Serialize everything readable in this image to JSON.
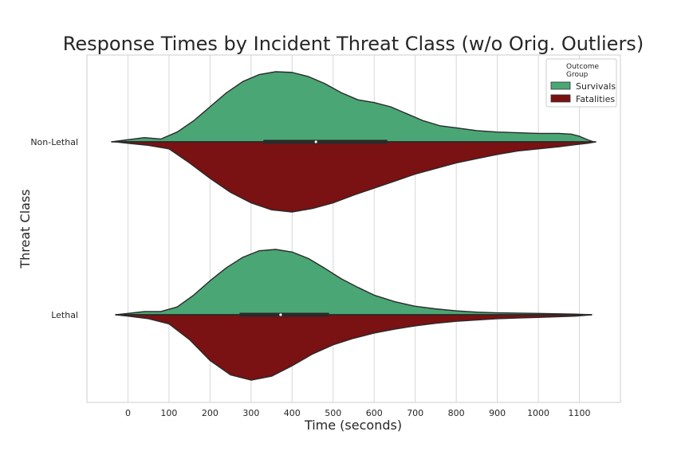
{
  "chart_data": {
    "type": "violin",
    "title": "Response Times by Incident Threat Class (w/o Orig. Outliers)",
    "xlabel": "Time (seconds)",
    "ylabel": "Threat Class",
    "xlim": [
      -100,
      1200
    ],
    "xticks": [
      0,
      100,
      200,
      300,
      400,
      500,
      600,
      700,
      800,
      900,
      1000,
      1100
    ],
    "xtick_labels": [
      "0",
      "100",
      "200",
      "300",
      "400",
      "500",
      "600",
      "700",
      "800",
      "900",
      "1000",
      "1100"
    ],
    "categories": [
      "Non-Lethal",
      "Lethal"
    ],
    "grid": "vertical",
    "split": true,
    "legend": {
      "title": "Outcome Group",
      "title_lines": [
        "Outcome",
        "Group"
      ],
      "placement": "top-right",
      "entries": [
        "Survivals",
        "Fatalities"
      ]
    },
    "series": [
      {
        "name": "Survivals",
        "color": "#4aa674",
        "side": "upper",
        "density": [
          {
            "category": "Non-Lethal",
            "x": [
              -40,
              0,
              40,
              80,
              120,
              160,
              200,
              240,
              280,
              320,
              360,
              400,
              440,
              480,
              520,
              560,
              600,
              640,
              680,
              720,
              760,
              800,
              850,
              900,
              950,
              1000,
              1050,
              1080,
              1100,
              1120,
              1135
            ],
            "y": [
              0,
              0.03,
              0.06,
              0.04,
              0.14,
              0.3,
              0.5,
              0.7,
              0.86,
              0.96,
              1.0,
              0.99,
              0.93,
              0.83,
              0.7,
              0.6,
              0.56,
              0.5,
              0.4,
              0.3,
              0.23,
              0.2,
              0.16,
              0.14,
              0.13,
              0.12,
              0.12,
              0.11,
              0.08,
              0.03,
              0
            ]
          },
          {
            "category": "Lethal",
            "x": [
              -30,
              0,
              40,
              80,
              120,
              160,
              200,
              240,
              280,
              320,
              360,
              400,
              440,
              480,
              520,
              560,
              600,
              650,
              700,
              750,
              800,
              850,
              900,
              950,
              1000,
              1050,
              1090,
              1130
            ],
            "y": [
              0,
              0.02,
              0.05,
              0.05,
              0.12,
              0.3,
              0.52,
              0.72,
              0.88,
              0.98,
              1.0,
              0.96,
              0.86,
              0.71,
              0.55,
              0.42,
              0.3,
              0.2,
              0.13,
              0.09,
              0.06,
              0.04,
              0.03,
              0.025,
              0.02,
              0.015,
              0.01,
              0
            ]
          }
        ]
      },
      {
        "name": "Fatalities",
        "color": "#7a1112",
        "side": "lower",
        "density": [
          {
            "category": "Non-Lethal",
            "x": [
              -30,
              0,
              50,
              100,
              150,
              200,
              250,
              300,
              350,
              400,
              450,
              500,
              550,
              600,
              650,
              700,
              750,
              800,
              850,
              900,
              950,
              1000,
              1050,
              1090,
              1120,
              1140
            ],
            "y": [
              0,
              0.02,
              0.05,
              0.1,
              0.3,
              0.52,
              0.72,
              0.87,
              0.97,
              1.0,
              0.95,
              0.87,
              0.76,
              0.66,
              0.56,
              0.46,
              0.38,
              0.3,
              0.24,
              0.18,
              0.13,
              0.1,
              0.07,
              0.04,
              0.02,
              0
            ]
          },
          {
            "category": "Lethal",
            "x": [
              -30,
              0,
              50,
              100,
              150,
              200,
              250,
              300,
              350,
              400,
              450,
              500,
              550,
              600,
              650,
              700,
              750,
              800,
              850,
              900,
              950,
              1000,
              1050,
              1090,
              1130
            ],
            "y": [
              0,
              0.02,
              0.06,
              0.14,
              0.38,
              0.7,
              0.92,
              1.0,
              0.94,
              0.78,
              0.6,
              0.46,
              0.36,
              0.28,
              0.22,
              0.17,
              0.13,
              0.1,
              0.08,
              0.06,
              0.05,
              0.04,
              0.03,
              0.02,
              0
            ]
          }
        ]
      }
    ],
    "inner_box": [
      {
        "category": "Non-Lethal",
        "q1": 330,
        "median": 458,
        "q3": 632
      },
      {
        "category": "Lethal",
        "q1": 272,
        "median": 372,
        "q3": 490
      }
    ]
  }
}
